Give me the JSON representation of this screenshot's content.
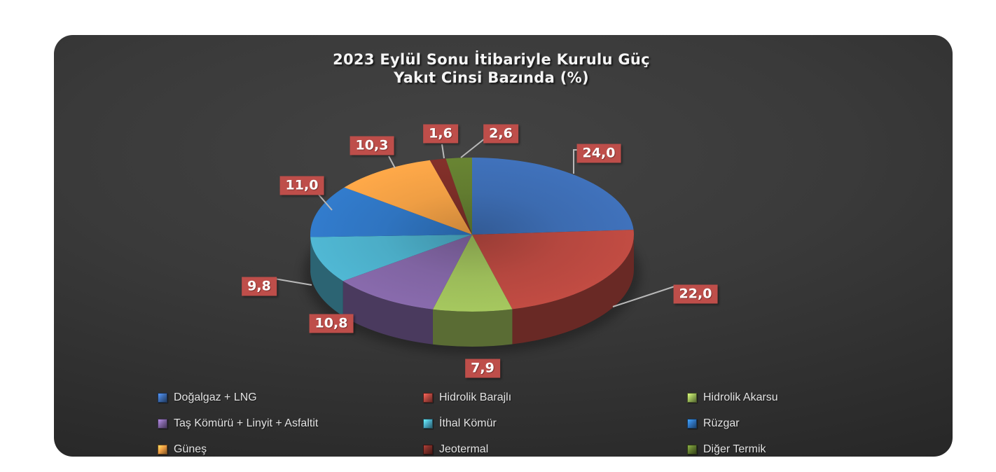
{
  "title": {
    "line1": "2023 Eylül Sonu İtibariyle Kurulu Güç",
    "line2": "Yakıt Cinsi Bazında (%)"
  },
  "chart_data": {
    "type": "pie",
    "style": "3d-pie",
    "title": "2023 Eylül Sonu İtibariyle Kurulu Güç Yakıt Cinsi Bazında (%)",
    "unit": "percent",
    "decimal_separator": ",",
    "start_angle_deg": 0,
    "direction": "clockwise",
    "legend_position": "bottom",
    "series": [
      {
        "label": "Doğalgaz + LNG",
        "value": 24.0,
        "display": "24,0",
        "color": "#3C6BB0"
      },
      {
        "label": "Hidrolik Barajlı",
        "value": 22.0,
        "display": "22,0",
        "color": "#B5473F"
      },
      {
        "label": "Hidrolik Akarsu",
        "value": 7.9,
        "display": "7,9",
        "color": "#9BBB59"
      },
      {
        "label": "Taş Kömürü + Linyit + Asfaltit",
        "value": 10.8,
        "display": "10,8",
        "color": "#8064A2"
      },
      {
        "label": "İthal Kömür",
        "value": 9.8,
        "display": "9,8",
        "color": "#4BACC6"
      },
      {
        "label": "Rüzgar",
        "value": 11.0,
        "display": "11,0",
        "color": "#2F74C0"
      },
      {
        "label": "Güneş",
        "value": 10.3,
        "display": "10,3",
        "color": "#EF9E44"
      },
      {
        "label": "Jeotermal",
        "value": 1.6,
        "display": "1,6",
        "color": "#7B2D27"
      },
      {
        "label": "Diğer Termik",
        "value": 2.6,
        "display": "2,6",
        "color": "#627C30"
      }
    ],
    "colors": {
      "card_background": "#363636",
      "page_background": "#FFFFFF",
      "title_text": "#F5F5F5",
      "legend_text": "#E3E3E3",
      "label_box": "#BE4E4A",
      "label_text": "#FFFFFF",
      "leader_line": "#B9B9B9"
    }
  }
}
